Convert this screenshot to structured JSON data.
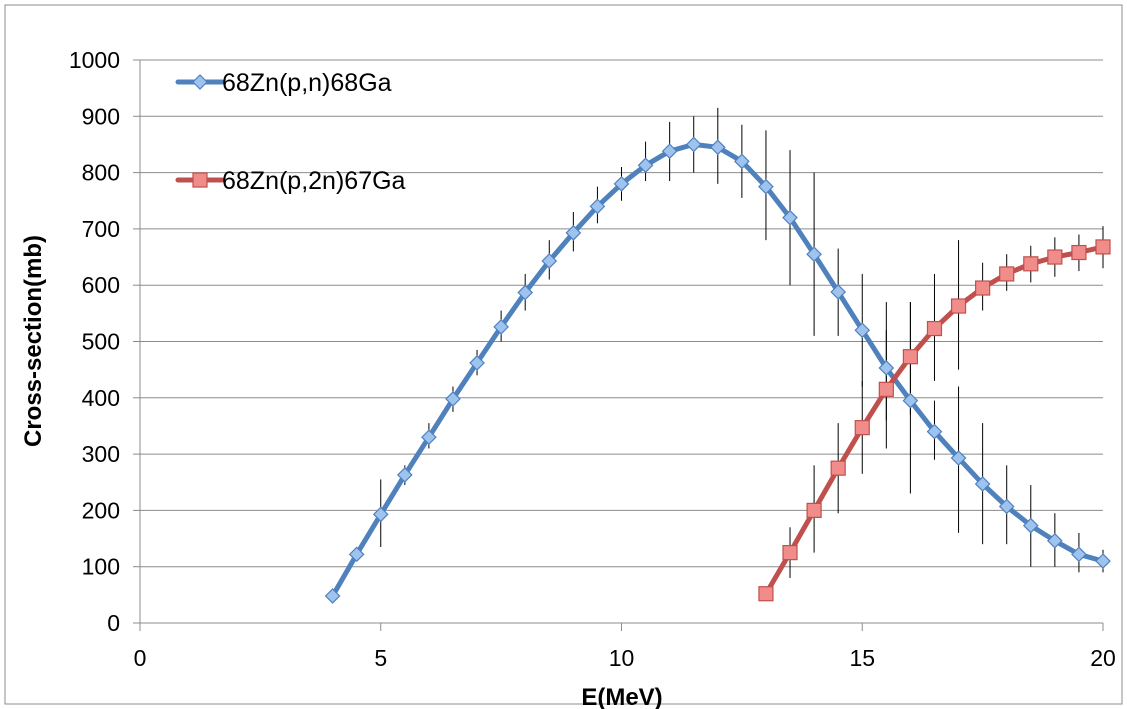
{
  "chart_data": {
    "type": "line",
    "title": "",
    "xlabel": "E(MeV)",
    "ylabel": "Cross-section(mb)",
    "xlim": [
      0,
      20
    ],
    "ylim": [
      0,
      1000
    ],
    "x_ticks": [
      0,
      5,
      10,
      15,
      20
    ],
    "y_ticks": [
      0,
      100,
      200,
      300,
      400,
      500,
      600,
      700,
      800,
      900,
      1000
    ],
    "grid": "horizontal",
    "legend_position": "top-left",
    "series": [
      {
        "name": "68Zn(p,n)68Ga",
        "color": "#4f81bd",
        "marker_color": "#9fc3ef",
        "marker": "diamond",
        "x": [
          4,
          4.5,
          5,
          5.5,
          6,
          6.5,
          7,
          7.5,
          8,
          8.5,
          9,
          9.5,
          10,
          10.5,
          11,
          11.5,
          12,
          12.5,
          13,
          13.5,
          14,
          14.5,
          15,
          15.5,
          16,
          16.5,
          17,
          17.5,
          18,
          18.5,
          19,
          19.5,
          20
        ],
        "y": [
          48,
          122,
          193,
          263,
          330,
          398,
          462,
          526,
          587,
          643,
          693,
          740,
          780,
          813,
          838,
          850,
          845,
          820,
          775,
          720,
          655,
          588,
          520,
          453,
          395,
          340,
          293,
          247,
          207,
          173,
          146,
          122,
          110
        ],
        "err_low": [
          48,
          122,
          135,
          245,
          310,
          375,
          440,
          500,
          555,
          610,
          660,
          710,
          750,
          785,
          785,
          800,
          780,
          755,
          680,
          600,
          510,
          510,
          420,
          360,
          230,
          290,
          160,
          140,
          140,
          100,
          100,
          90,
          90
        ],
        "err_high": [
          48,
          122,
          255,
          280,
          355,
          420,
          485,
          555,
          620,
          680,
          730,
          775,
          810,
          855,
          890,
          900,
          915,
          885,
          875,
          840,
          800,
          665,
          620,
          570,
          570,
          395,
          420,
          355,
          280,
          245,
          195,
          160,
          130
        ]
      },
      {
        "name": "68Zn(p,2n)67Ga",
        "color": "#c0504d",
        "marker_color": "#f08c8a",
        "marker": "square",
        "x": [
          13,
          13.5,
          14,
          14.5,
          15,
          15.5,
          16,
          16.5,
          17,
          17.5,
          18,
          18.5,
          19,
          19.5,
          20
        ],
        "y": [
          52,
          125,
          200,
          275,
          347,
          415,
          473,
          523,
          563,
          595,
          620,
          638,
          650,
          658,
          668
        ],
        "err_low": [
          52,
          80,
          125,
          195,
          265,
          310,
          370,
          430,
          450,
          555,
          590,
          605,
          615,
          625,
          630
        ],
        "err_high": [
          52,
          170,
          280,
          355,
          430,
          520,
          570,
          620,
          680,
          640,
          655,
          670,
          685,
          690,
          705
        ]
      }
    ]
  }
}
